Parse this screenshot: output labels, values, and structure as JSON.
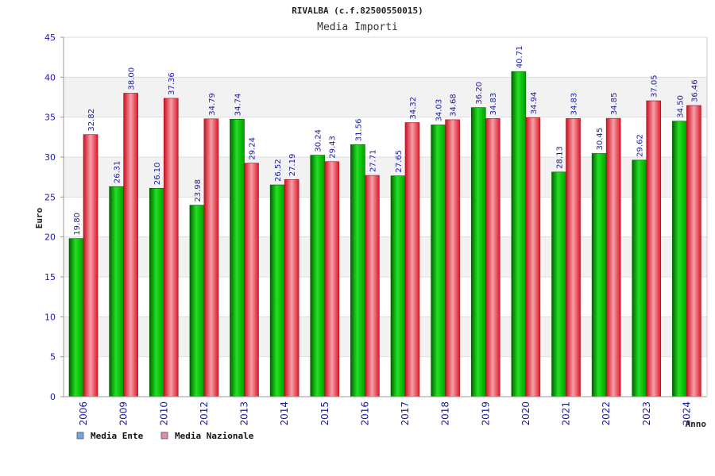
{
  "chart_data": {
    "type": "bar",
    "title": "RIVALBA (c.f.82500550015)",
    "subtitle": "Media Importi",
    "ylabel": "Euro",
    "xlabel": "Anno",
    "ylim": [
      0,
      45
    ],
    "yticks": [
      0,
      5,
      10,
      15,
      20,
      25,
      30,
      35,
      40,
      45
    ],
    "grid": true,
    "legend_position": "bottom-left",
    "categories": [
      "2006",
      "2009",
      "2010",
      "2012",
      "2013",
      "2014",
      "2015",
      "2016",
      "2017",
      "2018",
      "2019",
      "2020",
      "2021",
      "2022",
      "2023",
      "2024"
    ],
    "series": [
      {
        "name": "Media Ente",
        "color": "#00b400",
        "legend_color": "#6fa8dc",
        "values": [
          19.8,
          26.31,
          26.1,
          23.98,
          34.74,
          26.52,
          30.24,
          31.56,
          27.65,
          34.03,
          36.2,
          40.71,
          28.13,
          30.45,
          29.62,
          34.5
        ],
        "labels": [
          "19.80",
          "26.31",
          "26.10",
          "23.98",
          "34.74",
          "26.52",
          "30.24",
          "31.56",
          "27.65",
          "34.03",
          "36.20",
          "40.71",
          "28.13",
          "30.45",
          "29.62",
          "34.50"
        ]
      },
      {
        "name": "Media Nazionale",
        "color": "#e0202a",
        "legend_color": "#e68aa8",
        "values": [
          32.82,
          38.0,
          37.36,
          34.79,
          29.24,
          27.19,
          29.43,
          27.71,
          34.32,
          34.68,
          34.83,
          34.94,
          34.83,
          34.85,
          37.05,
          36.46
        ],
        "labels": [
          "32.82",
          "38.00",
          "37.36",
          "34.79",
          "29.24",
          "27.19",
          "29.43",
          "27.71",
          "34.32",
          "34.68",
          "34.83",
          "34.94",
          "34.83",
          "34.85",
          "37.05",
          "36.46"
        ]
      }
    ]
  }
}
